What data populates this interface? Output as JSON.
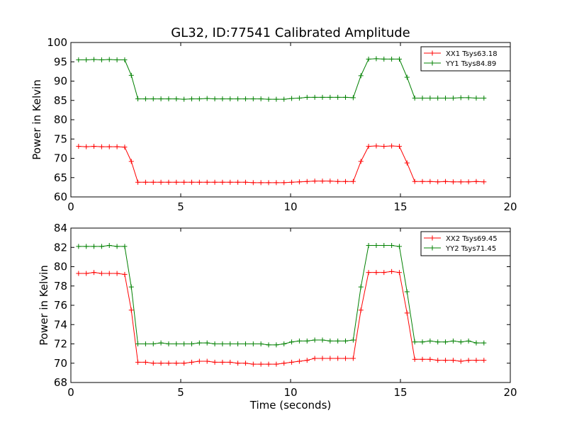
{
  "chart_data": [
    {
      "type": "line",
      "title": "GL32, ID:77541 Calibrated Amplitude",
      "xlabel": "",
      "ylabel": "Power in Kelvin",
      "xlim": [
        0,
        20
      ],
      "ylim": [
        60,
        100
      ],
      "xticks": [
        0,
        5,
        10,
        15,
        20
      ],
      "yticks": [
        60,
        65,
        70,
        75,
        80,
        85,
        90,
        95,
        100
      ],
      "legend_position": "top-right",
      "x": [
        0.35,
        0.7,
        1.05,
        1.4,
        1.75,
        2.1,
        2.45,
        2.75,
        3.05,
        3.4,
        3.75,
        4.1,
        4.45,
        4.8,
        5.15,
        5.5,
        5.85,
        6.2,
        6.55,
        6.9,
        7.25,
        7.6,
        7.95,
        8.3,
        8.65,
        9.0,
        9.35,
        9.7,
        10.05,
        10.4,
        10.75,
        11.1,
        11.45,
        11.8,
        12.15,
        12.5,
        12.85,
        13.2,
        13.55,
        13.9,
        14.25,
        14.6,
        14.95,
        15.3,
        15.65,
        16.0,
        16.35,
        16.7,
        17.05,
        17.4,
        17.75,
        18.1,
        18.45,
        18.8
      ],
      "series": [
        {
          "name": "XX1 Tsys63.18",
          "color": "#ff0000",
          "values": [
            73.1,
            73.0,
            73.1,
            73.0,
            73.0,
            73.0,
            72.9,
            69.2,
            63.8,
            63.8,
            63.8,
            63.8,
            63.8,
            63.8,
            63.8,
            63.8,
            63.8,
            63.8,
            63.8,
            63.8,
            63.8,
            63.8,
            63.8,
            63.7,
            63.7,
            63.7,
            63.7,
            63.7,
            63.8,
            63.9,
            64.0,
            64.1,
            64.1,
            64.1,
            64.0,
            64.0,
            64.0,
            69.2,
            73.1,
            73.2,
            73.1,
            73.2,
            73.1,
            68.8,
            64.0,
            64.0,
            64.0,
            63.9,
            64.0,
            63.9,
            63.9,
            63.9,
            64.0,
            63.9
          ]
        },
        {
          "name": "YY1 Tsys84.89",
          "color": "#008000",
          "values": [
            95.5,
            95.5,
            95.6,
            95.5,
            95.6,
            95.5,
            95.5,
            91.5,
            85.4,
            85.4,
            85.4,
            85.4,
            85.4,
            85.4,
            85.3,
            85.4,
            85.4,
            85.5,
            85.4,
            85.4,
            85.4,
            85.4,
            85.4,
            85.4,
            85.4,
            85.3,
            85.3,
            85.3,
            85.5,
            85.6,
            85.8,
            85.8,
            85.8,
            85.8,
            85.8,
            85.8,
            85.7,
            91.4,
            95.7,
            95.8,
            95.7,
            95.7,
            95.7,
            91.0,
            85.6,
            85.6,
            85.6,
            85.6,
            85.6,
            85.6,
            85.7,
            85.7,
            85.6,
            85.6
          ]
        }
      ]
    },
    {
      "type": "line",
      "title": "",
      "xlabel": "Time (seconds)",
      "ylabel": "Power in Kelvin",
      "xlim": [
        0,
        20
      ],
      "ylim": [
        68,
        84
      ],
      "xticks": [
        0,
        5,
        10,
        15,
        20
      ],
      "yticks": [
        68,
        70,
        72,
        74,
        76,
        78,
        80,
        82,
        84
      ],
      "legend_position": "top-right",
      "x": [
        0.35,
        0.7,
        1.05,
        1.4,
        1.75,
        2.1,
        2.45,
        2.75,
        3.05,
        3.4,
        3.75,
        4.1,
        4.45,
        4.8,
        5.15,
        5.5,
        5.85,
        6.2,
        6.55,
        6.9,
        7.25,
        7.6,
        7.95,
        8.3,
        8.65,
        9.0,
        9.35,
        9.7,
        10.05,
        10.4,
        10.75,
        11.1,
        11.45,
        11.8,
        12.15,
        12.5,
        12.85,
        13.2,
        13.55,
        13.9,
        14.25,
        14.6,
        14.95,
        15.3,
        15.65,
        16.0,
        16.35,
        16.7,
        17.05,
        17.4,
        17.75,
        18.1,
        18.45,
        18.8
      ],
      "series": [
        {
          "name": "XX2 Tsys69.45",
          "color": "#ff0000",
          "values": [
            79.3,
            79.3,
            79.4,
            79.3,
            79.3,
            79.3,
            79.2,
            75.5,
            70.1,
            70.1,
            70.0,
            70.0,
            70.0,
            70.0,
            70.0,
            70.1,
            70.2,
            70.2,
            70.1,
            70.1,
            70.1,
            70.0,
            70.0,
            69.9,
            69.9,
            69.9,
            69.9,
            70.0,
            70.1,
            70.2,
            70.3,
            70.5,
            70.5,
            70.5,
            70.5,
            70.5,
            70.5,
            75.5,
            79.4,
            79.4,
            79.4,
            79.5,
            79.4,
            75.2,
            70.4,
            70.4,
            70.4,
            70.3,
            70.3,
            70.3,
            70.2,
            70.3,
            70.3,
            70.3
          ]
        },
        {
          "name": "YY2 Tsys71.45",
          "color": "#008000",
          "values": [
            82.1,
            82.1,
            82.1,
            82.1,
            82.2,
            82.1,
            82.1,
            77.9,
            72.0,
            72.0,
            72.0,
            72.1,
            72.0,
            72.0,
            72.0,
            72.0,
            72.1,
            72.1,
            72.0,
            72.0,
            72.0,
            72.0,
            72.0,
            72.0,
            72.0,
            71.9,
            71.9,
            72.0,
            72.2,
            72.3,
            72.3,
            72.4,
            72.4,
            72.3,
            72.3,
            72.3,
            72.4,
            77.9,
            82.2,
            82.2,
            82.2,
            82.2,
            82.1,
            77.4,
            72.2,
            72.2,
            72.3,
            72.2,
            72.2,
            72.3,
            72.2,
            72.3,
            72.1,
            72.1
          ]
        }
      ]
    }
  ]
}
